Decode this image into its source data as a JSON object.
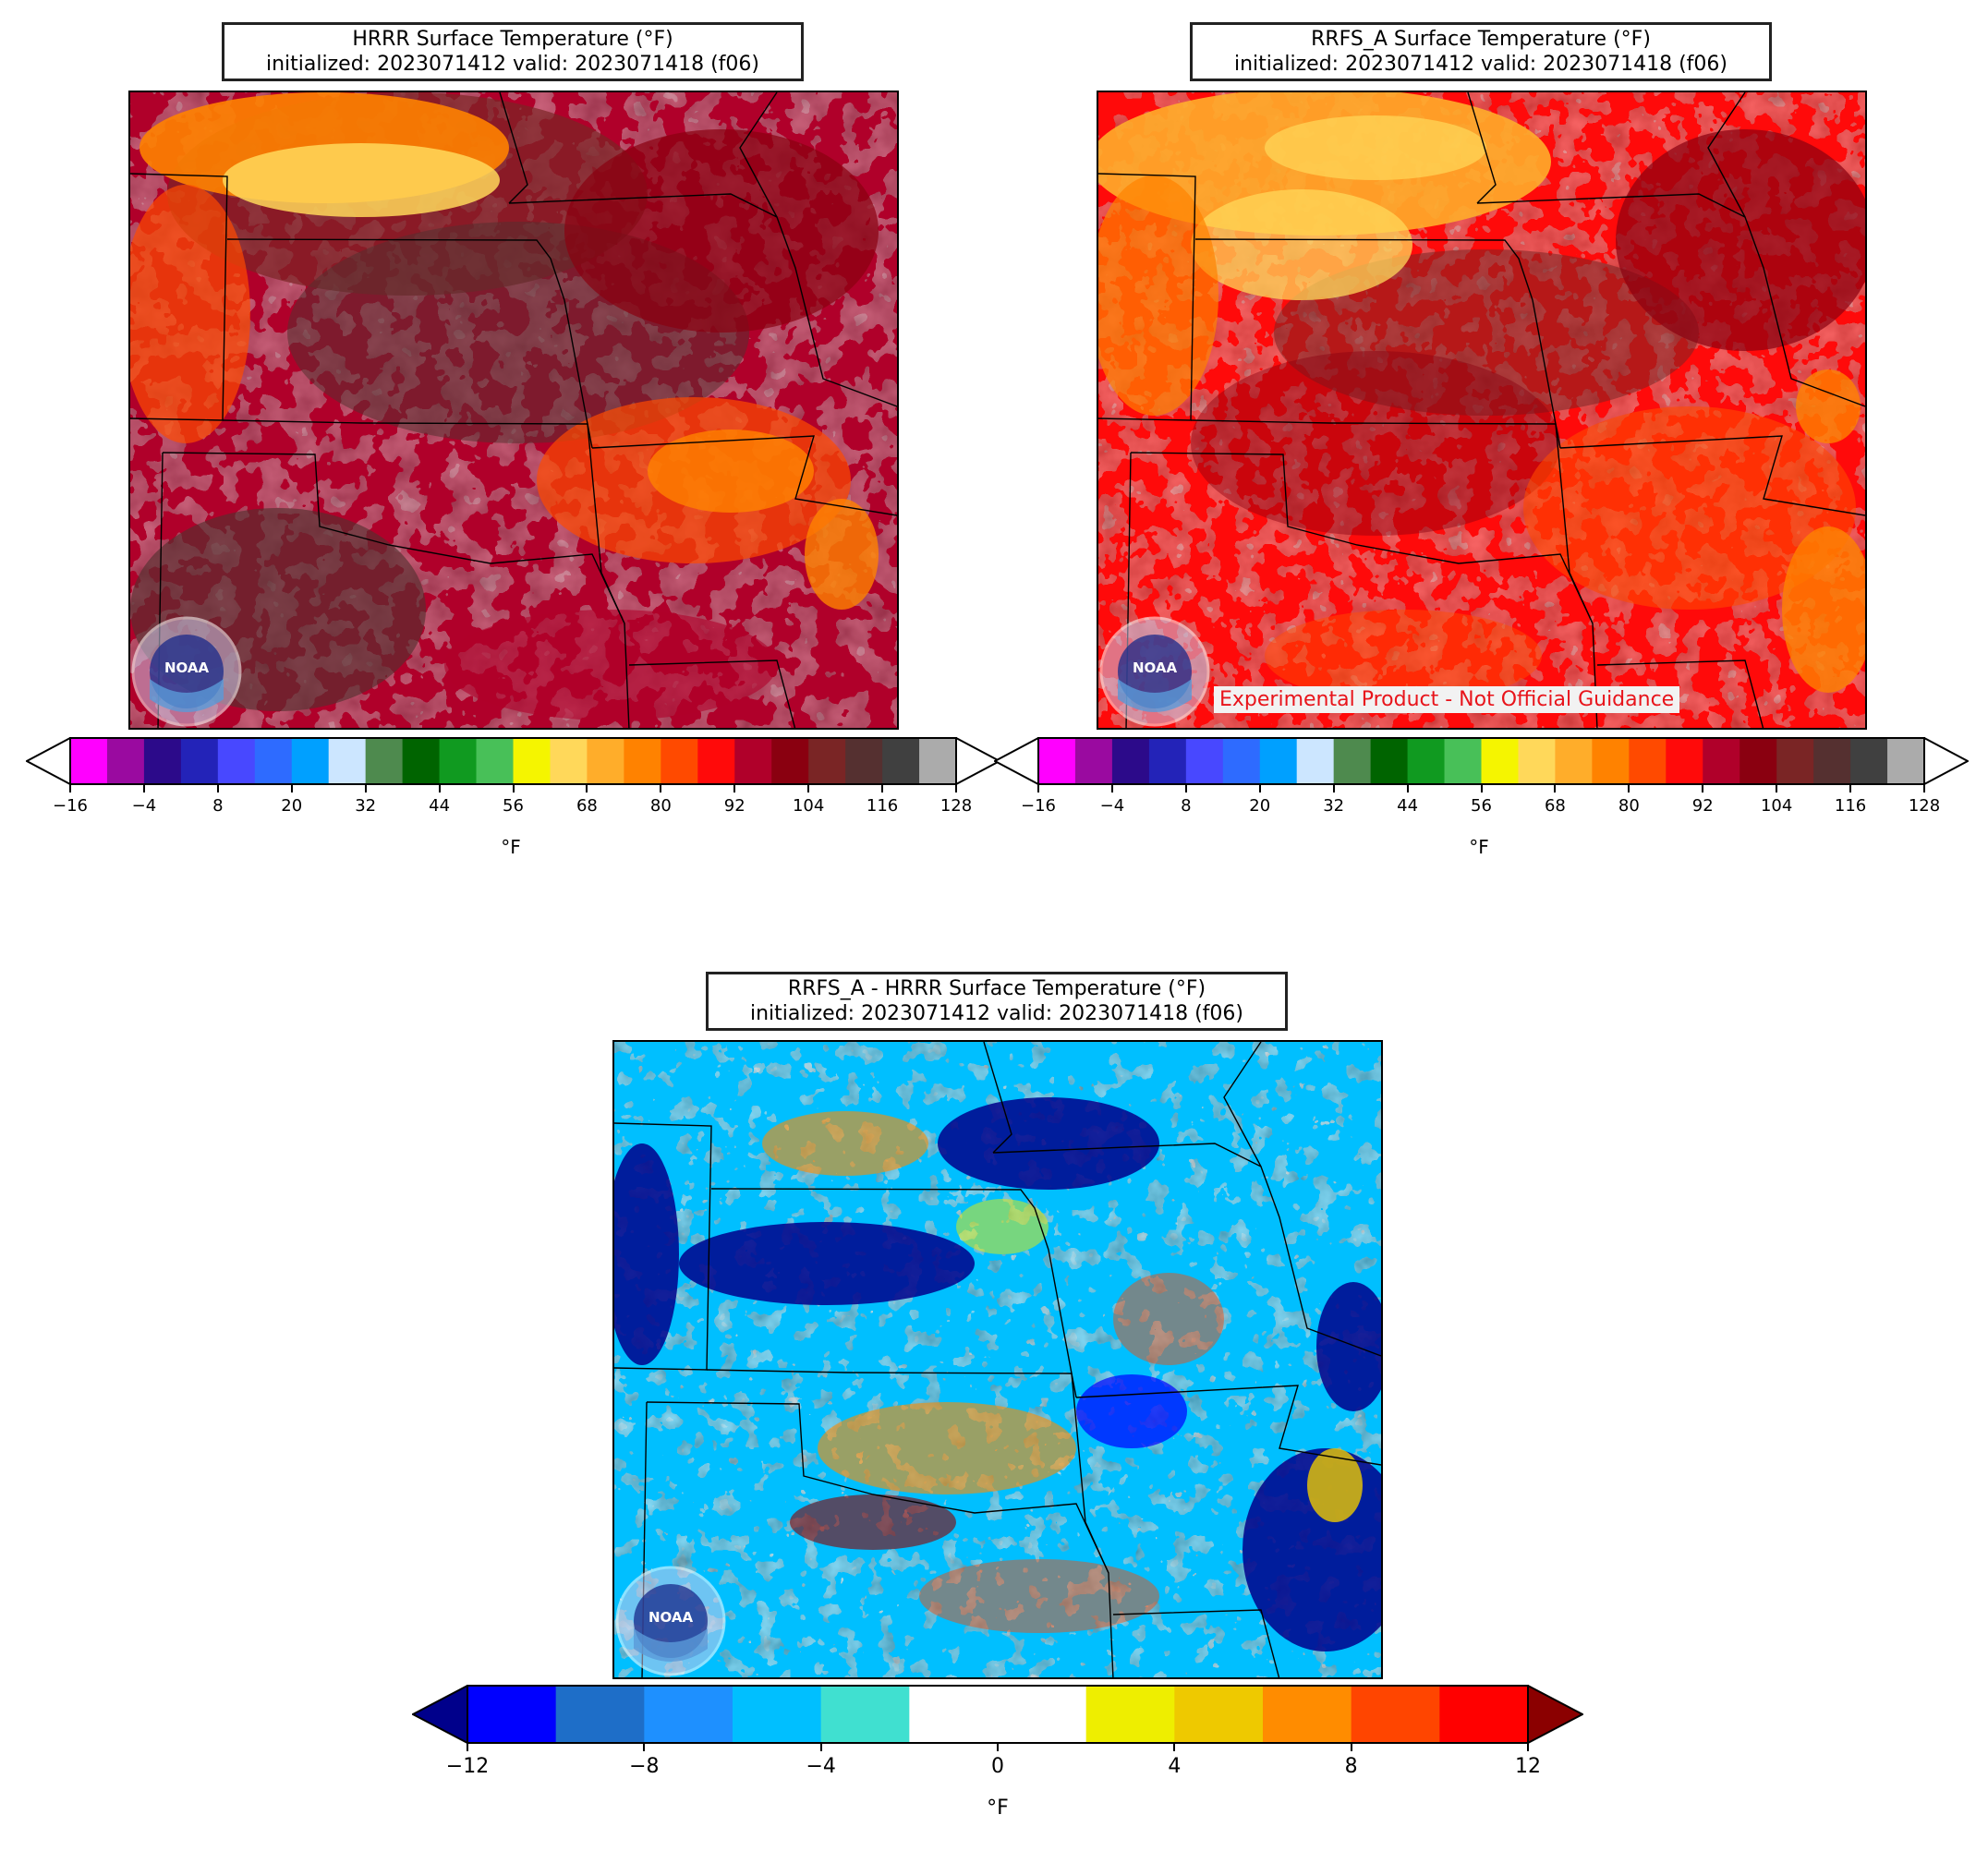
{
  "panels": {
    "hrrr": {
      "title_line1": "HRRR Surface Temperature (°F)",
      "title_line2": "initialized: 2023071412 valid: 2023071418 (f06)"
    },
    "rrfs": {
      "title_line1": "RRFS_A Surface Temperature (°F)",
      "title_line2": "initialized: 2023071412 valid: 2023071418 (f06)",
      "disclaimer": "Experimental Product - Not Official Guidance"
    },
    "diff": {
      "title_line1": "RRFS_A - HRRR Surface Temperature (°F)",
      "title_line2": "initialized: 2023071412 valid: 2023071418 (f06)"
    }
  },
  "logo": {
    "text": "NOAA",
    "icon": "noaa-logo-icon"
  },
  "temp_colorbar": {
    "unit": "°F",
    "ticks": [
      "−16",
      "−4",
      "8",
      "20",
      "32",
      "44",
      "56",
      "68",
      "80",
      "92",
      "104",
      "116",
      "128"
    ],
    "colors": [
      "#ff00ff",
      "#9a0aa0",
      "#2c0a8a",
      "#2323b8",
      "#4848ff",
      "#2e6bff",
      "#00a0ff",
      "#cce6ff",
      "#4e8a4e",
      "#006400",
      "#109a20",
      "#48c058",
      "#f5f500",
      "#ffd85a",
      "#ffad2a",
      "#ff8200",
      "#ff4a00",
      "#ff0a0a",
      "#b0002a",
      "#8a0010",
      "#7a2525",
      "#553030",
      "#404040",
      "#ababab"
    ],
    "extend_min_color": "#ffffff",
    "extend_max_color": "#ffffff"
  },
  "diff_colorbar": {
    "unit": "°F",
    "ticks": [
      "−12",
      "−8",
      "−4",
      "0",
      "4",
      "8",
      "12"
    ],
    "colors": [
      "#0000ff",
      "#1e6ec8",
      "#1e90ff",
      "#00bfff",
      "#40e0d0",
      "#ffffff",
      "#ffffff",
      "#eeee00",
      "#eec900",
      "#ff8c00",
      "#ff4500",
      "#ff0000"
    ],
    "extend_min_color": "#00008b",
    "extend_max_color": "#8b0000"
  }
}
